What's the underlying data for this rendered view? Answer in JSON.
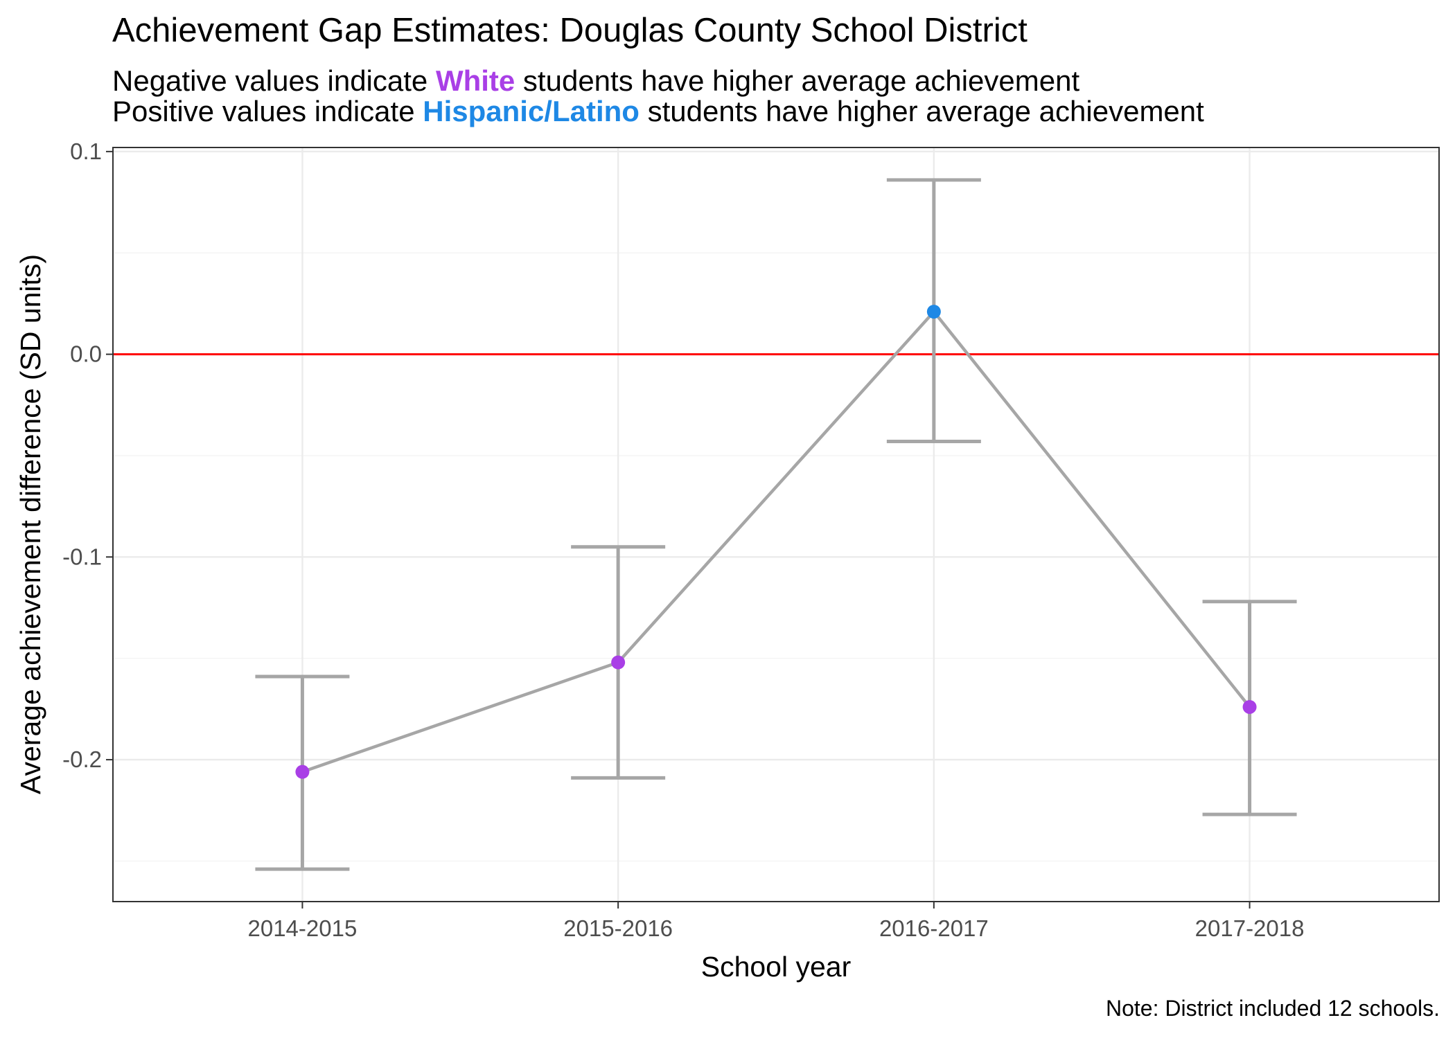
{
  "chart_data": {
    "type": "scatter",
    "title": "Achievement Gap Estimates: Douglas County School District",
    "subtitle": {
      "line1": {
        "before": "Negative values indicate ",
        "highlight": "White",
        "after": " students have higher average achievement"
      },
      "line2": {
        "before": "Positive values indicate ",
        "highlight": "Hispanic/Latino",
        "after": " students have higher average achievement"
      }
    },
    "xlabel": "School year",
    "ylabel": "Average achievement difference (SD units)",
    "caption": "Note: District included 12 schools.",
    "categories": [
      "2014-2015",
      "2015-2016",
      "2016-2017",
      "2017-2018"
    ],
    "values": [
      -0.206,
      -0.152,
      0.021,
      -0.174
    ],
    "lower": [
      -0.254,
      -0.209,
      -0.043,
      -0.227
    ],
    "upper": [
      -0.159,
      -0.095,
      0.086,
      -0.122
    ],
    "ylim": [
      -0.27,
      0.102
    ],
    "yticks": [
      -0.2,
      -0.1,
      0.0,
      0.1
    ],
    "ytick_labels": [
      "-0.2",
      "-0.1",
      "0.0",
      "0.1"
    ],
    "yminor": [
      -0.25,
      -0.15,
      -0.05,
      0.05
    ],
    "reference_line": 0,
    "grid": true,
    "colors": {
      "negative": "#A93FE6",
      "positive": "#1E88E5",
      "line": "#A6A6A6",
      "reference": "#FF0000",
      "grid_major": "#EBEBEB",
      "grid_minor": "#F2F2F2",
      "panel_border": "#333333",
      "tick_text": "#4D4D4D"
    }
  }
}
